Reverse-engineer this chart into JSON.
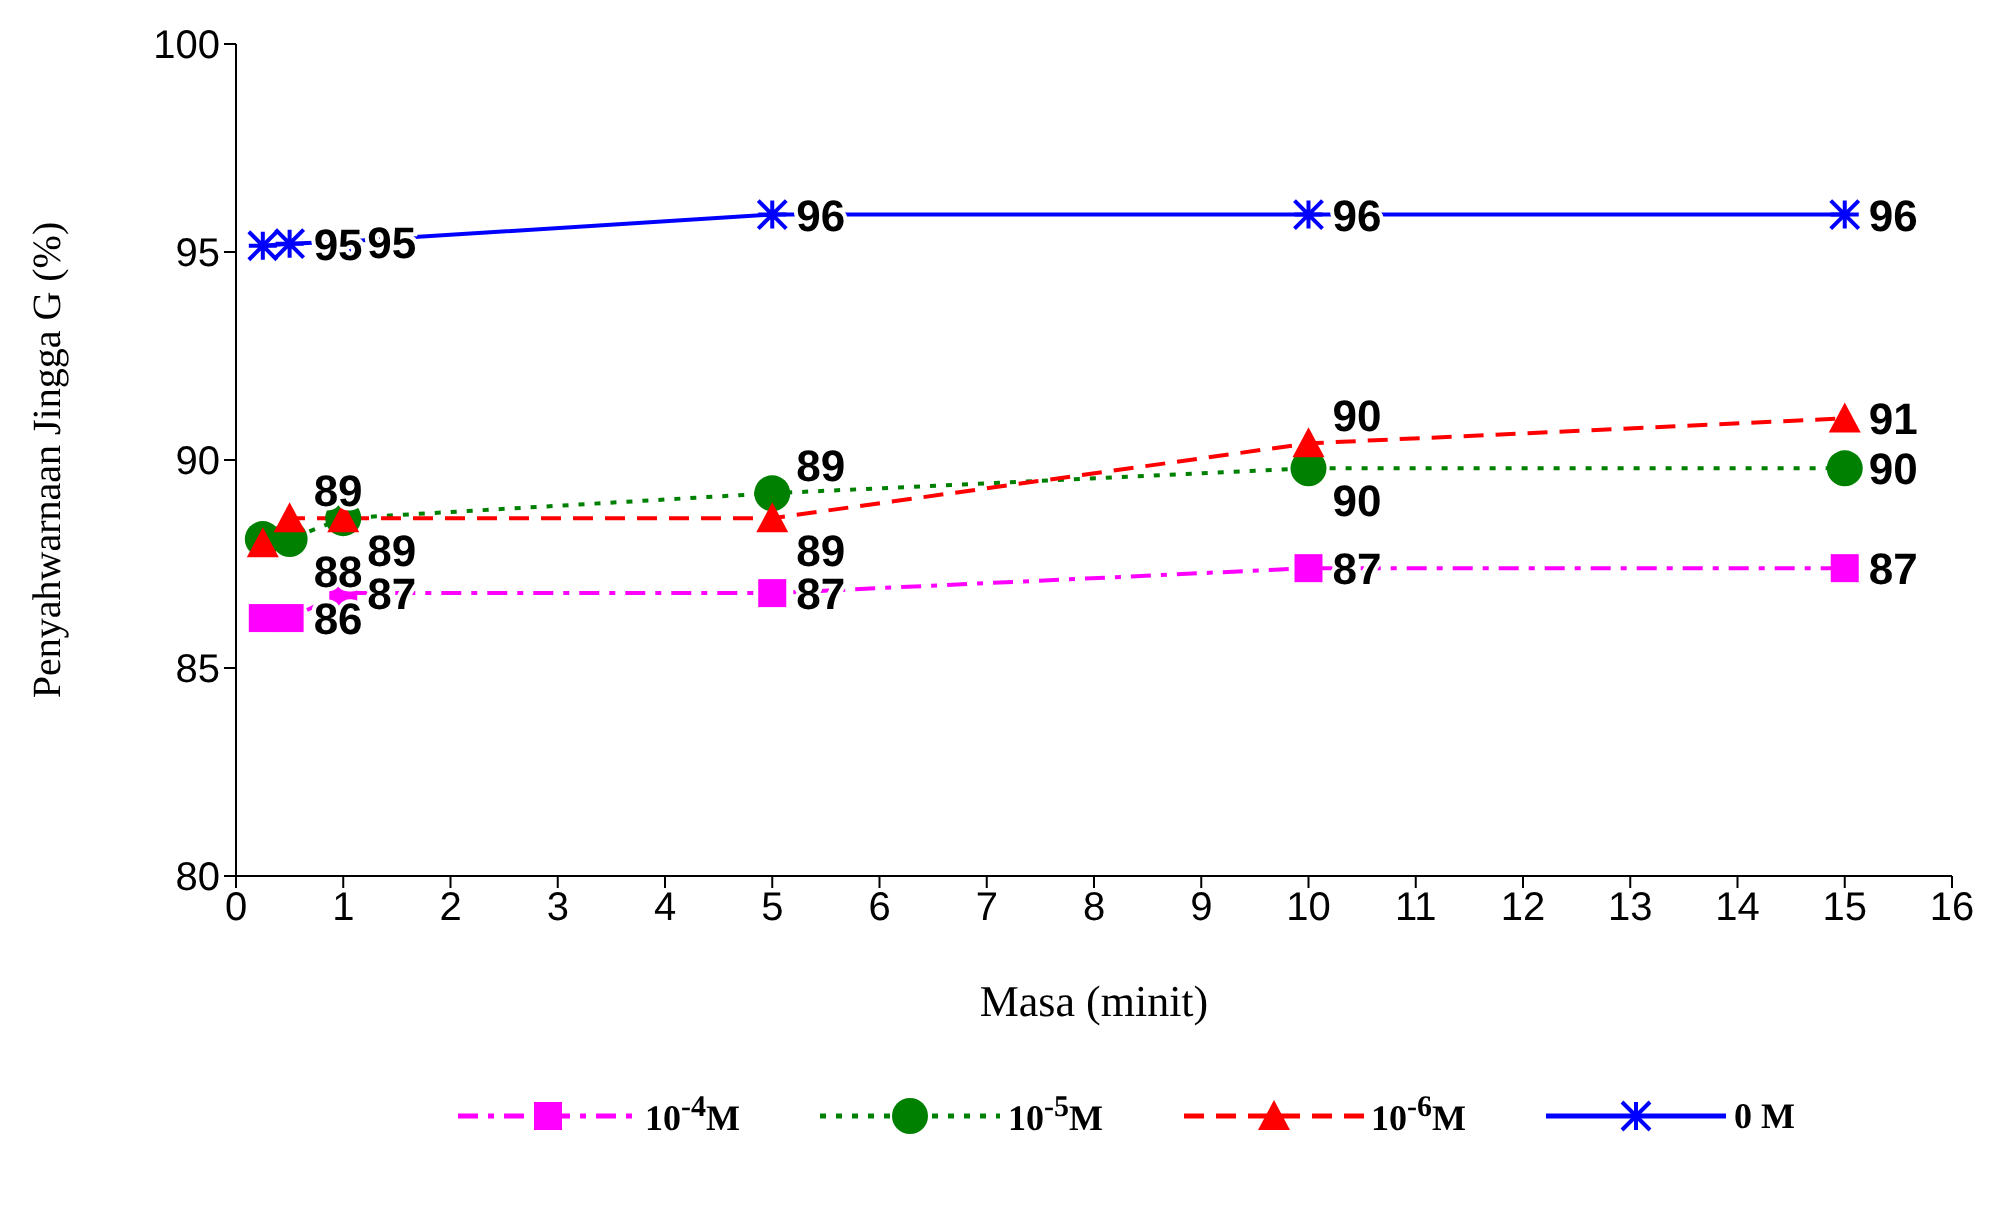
{
  "chart_data": {
    "type": "line",
    "xlabel": "Masa (minit)",
    "ylabel": "Penyahwarnaan Jingga G (%)",
    "x": [
      0.25,
      0.5,
      1,
      5,
      10,
      15
    ],
    "xlim": [
      0,
      16
    ],
    "xticks": [
      0,
      1,
      2,
      3,
      4,
      5,
      6,
      7,
      8,
      9,
      10,
      11,
      12,
      13,
      14,
      15,
      16
    ],
    "ylim": [
      80,
      100
    ],
    "yticks": [
      80,
      85,
      90,
      95,
      100
    ],
    "grid": false,
    "legend": "bottom",
    "series": [
      {
        "name": "10$^{-4}$M",
        "color": "#ff00ff",
        "marker": "square",
        "line_style": "dashdot",
        "values": [
          86.2,
          86.2,
          86.8,
          86.8,
          87.4,
          87.4
        ],
        "value_labels": [
          null,
          "86",
          "87",
          "87",
          "87",
          "87"
        ]
      },
      {
        "name": "10$^{-5}$M",
        "color": "#008000",
        "marker": "circle",
        "line_style": "dotted",
        "values": [
          88.1,
          88.1,
          88.6,
          89.2,
          89.8,
          89.8
        ],
        "value_labels": [
          null,
          "88",
          "89",
          "89",
          "90",
          "90"
        ]
      },
      {
        "name": "10$^{-6}$M",
        "color": "#ff0000",
        "marker": "triangle",
        "line_style": "dashed",
        "values": [
          88.0,
          88.6,
          88.6,
          88.6,
          90.4,
          91.0
        ],
        "value_labels": [
          null,
          "89",
          null,
          "89",
          "90",
          "91"
        ]
      },
      {
        "name": "0 M",
        "color": "#0000ff",
        "marker": "cross",
        "line_style": "solid",
        "values": [
          95.15,
          95.2,
          95.25,
          95.9,
          95.9,
          95.9
        ],
        "value_labels": [
          null,
          "95",
          "95",
          "96",
          "96",
          "96"
        ]
      }
    ]
  }
}
